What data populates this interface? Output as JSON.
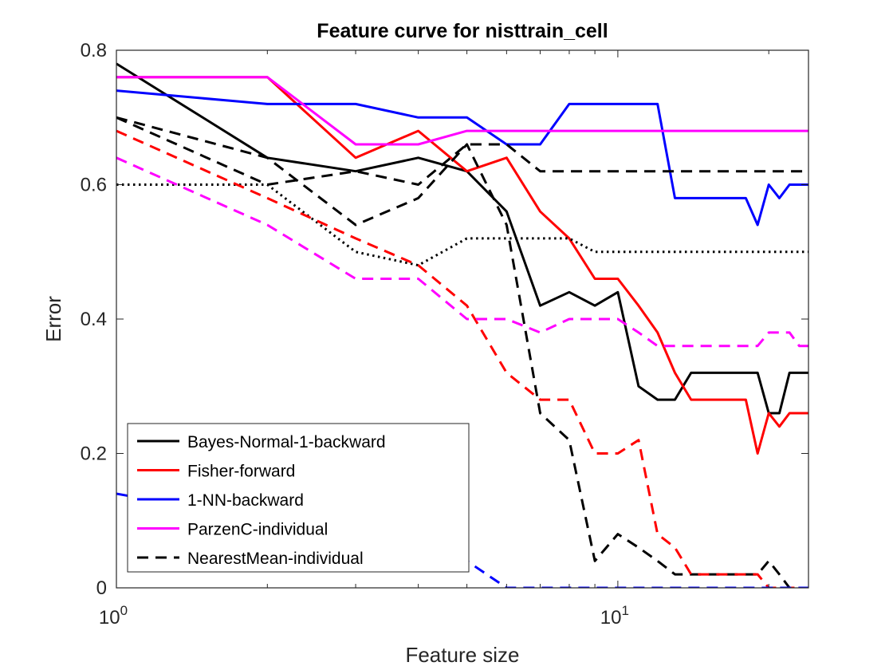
{
  "chart_data": {
    "type": "line",
    "title": "Feature curve for nisttrain_cell",
    "xlabel": "Feature size",
    "ylabel": "Error",
    "xscale": "log",
    "xlim": [
      1,
      24
    ],
    "ylim": [
      0,
      0.8
    ],
    "x_ticks": [
      {
        "value": 1,
        "base": "10",
        "exp": "0"
      },
      {
        "value": 10,
        "base": "10",
        "exp": "1"
      }
    ],
    "y_ticks": [
      {
        "value": 0,
        "label": "0"
      },
      {
        "value": 0.2,
        "label": "0.2"
      },
      {
        "value": 0.4,
        "label": "0.4"
      },
      {
        "value": 0.6,
        "label": "0.6"
      },
      {
        "value": 0.8,
        "label": "0.8"
      }
    ],
    "grid": false,
    "legend_position": "bottom-left",
    "series": [
      {
        "name": "Bayes-Normal-1-backward",
        "color": "#000000",
        "dash": "solid",
        "in_legend": true,
        "x": [
          1,
          2,
          3,
          4,
          5,
          6,
          7,
          8,
          9,
          10,
          11,
          12,
          13,
          14,
          15,
          16,
          17,
          18,
          19,
          20,
          21,
          22,
          23,
          24
        ],
        "y": [
          0.78,
          0.64,
          0.62,
          0.64,
          0.62,
          0.56,
          0.42,
          0.44,
          0.42,
          0.44,
          0.3,
          0.28,
          0.28,
          0.32,
          0.32,
          0.32,
          0.32,
          0.32,
          0.32,
          0.26,
          0.26,
          0.32,
          0.32,
          0.32
        ]
      },
      {
        "name": "Fisher-forward",
        "color": "#ff0000",
        "dash": "solid",
        "in_legend": true,
        "x": [
          1,
          2,
          3,
          4,
          5,
          6,
          7,
          8,
          9,
          10,
          11,
          12,
          13,
          14,
          15,
          16,
          17,
          18,
          19,
          20,
          21,
          22,
          23,
          24
        ],
        "y": [
          0.76,
          0.76,
          0.64,
          0.68,
          0.62,
          0.64,
          0.56,
          0.52,
          0.46,
          0.46,
          0.42,
          0.38,
          0.32,
          0.28,
          0.28,
          0.28,
          0.28,
          0.28,
          0.2,
          0.26,
          0.24,
          0.26,
          0.26,
          0.26
        ]
      },
      {
        "name": "1-NN-backward",
        "color": "#0000ff",
        "dash": "solid",
        "in_legend": true,
        "x": [
          1,
          2,
          3,
          4,
          5,
          6,
          7,
          8,
          9,
          10,
          11,
          12,
          13,
          14,
          15,
          16,
          17,
          18,
          19,
          20,
          21,
          22,
          23,
          24
        ],
        "y": [
          0.74,
          0.72,
          0.72,
          0.7,
          0.7,
          0.66,
          0.66,
          0.72,
          0.72,
          0.72,
          0.72,
          0.72,
          0.58,
          0.58,
          0.58,
          0.58,
          0.58,
          0.58,
          0.54,
          0.6,
          0.58,
          0.6,
          0.6,
          0.6
        ]
      },
      {
        "name": "ParzenC-individual",
        "color": "#ff00ff",
        "dash": "solid",
        "in_legend": true,
        "x": [
          1,
          2,
          3,
          4,
          5,
          6,
          7,
          8,
          9,
          10,
          11,
          12,
          13,
          14,
          15,
          16,
          17,
          18,
          19,
          20,
          21,
          22,
          23,
          24
        ],
        "y": [
          0.76,
          0.76,
          0.66,
          0.66,
          0.68,
          0.68,
          0.68,
          0.68,
          0.68,
          0.68,
          0.68,
          0.68,
          0.68,
          0.68,
          0.68,
          0.68,
          0.68,
          0.68,
          0.68,
          0.68,
          0.68,
          0.68,
          0.68,
          0.68
        ]
      },
      {
        "name": "NearestMean-individual",
        "color": "#000000",
        "dash": "dashed",
        "in_legend": true,
        "x": [
          1,
          2,
          3,
          4,
          5,
          6,
          7,
          8,
          9,
          10,
          11,
          12,
          13,
          14,
          15,
          16,
          17,
          18,
          19,
          20,
          21,
          22,
          23,
          24
        ],
        "y": [
          0.7,
          0.6,
          0.62,
          0.6,
          0.66,
          0.66,
          0.62,
          0.62,
          0.62,
          0.62,
          0.62,
          0.62,
          0.62,
          0.62,
          0.62,
          0.62,
          0.62,
          0.62,
          0.62,
          0.62,
          0.62,
          0.62,
          0.62,
          0.62
        ]
      },
      {
        "name": "",
        "color": "#000000",
        "dash": "dotted",
        "in_legend": false,
        "x": [
          1,
          2,
          3,
          4,
          5,
          6,
          7,
          8,
          9,
          10,
          11,
          12,
          13,
          14,
          15,
          16,
          17,
          18,
          19,
          20,
          21,
          22,
          23,
          24
        ],
        "y": [
          0.6,
          0.6,
          0.5,
          0.48,
          0.52,
          0.52,
          0.52,
          0.52,
          0.5,
          0.5,
          0.5,
          0.5,
          0.5,
          0.5,
          0.5,
          0.5,
          0.5,
          0.5,
          0.5,
          0.5,
          0.5,
          0.5,
          0.5,
          0.5
        ]
      },
      {
        "name": "",
        "color": "#000000",
        "dash": "dashed",
        "in_legend": false,
        "x": [
          1,
          2,
          3,
          4,
          5,
          6,
          7,
          8,
          9,
          10,
          11,
          12,
          13,
          14,
          15,
          16,
          17,
          18,
          19,
          20,
          21,
          22,
          23,
          24
        ],
        "y": [
          0.7,
          0.64,
          0.54,
          0.58,
          0.66,
          0.54,
          0.26,
          0.22,
          0.04,
          0.08,
          0.06,
          0.04,
          0.02,
          0.02,
          0.02,
          0.02,
          0.02,
          0.02,
          0.02,
          0.04,
          0.02,
          0.0,
          0.0,
          0.0
        ]
      },
      {
        "name": "",
        "color": "#ff0000",
        "dash": "dashed",
        "in_legend": false,
        "x": [
          1,
          2,
          3,
          4,
          5,
          6,
          7,
          8,
          9,
          10,
          11,
          12,
          13,
          14,
          15,
          16,
          17,
          18,
          19,
          20,
          21,
          22,
          23,
          24
        ],
        "y": [
          0.68,
          0.58,
          0.52,
          0.48,
          0.42,
          0.32,
          0.28,
          0.28,
          0.2,
          0.2,
          0.22,
          0.08,
          0.06,
          0.02,
          0.02,
          0.02,
          0.02,
          0.02,
          0.02,
          0.0,
          0.0,
          0.0,
          0.0,
          0.0
        ]
      },
      {
        "name": "",
        "color": "#ff00ff",
        "dash": "dashed",
        "in_legend": false,
        "x": [
          1,
          2,
          3,
          4,
          5,
          6,
          7,
          8,
          9,
          10,
          11,
          12,
          13,
          14,
          15,
          16,
          17,
          18,
          19,
          20,
          21,
          22,
          23,
          24
        ],
        "y": [
          0.64,
          0.54,
          0.46,
          0.46,
          0.4,
          0.4,
          0.38,
          0.4,
          0.4,
          0.4,
          0.38,
          0.36,
          0.36,
          0.36,
          0.36,
          0.36,
          0.36,
          0.36,
          0.36,
          0.38,
          0.38,
          0.38,
          0.36,
          0.36
        ]
      },
      {
        "name": "",
        "color": "#0000ff",
        "dash": "dashed",
        "in_legend": false,
        "x": [
          1,
          2,
          3,
          4,
          5,
          6,
          7,
          8,
          9,
          10,
          11,
          12,
          13,
          14,
          15,
          16,
          17,
          18,
          19,
          20,
          21,
          22,
          23,
          24
        ],
        "y": [
          0.14,
          0.1,
          0.08,
          0.06,
          0.04,
          0.0,
          0.0,
          0.0,
          0.0,
          0.0,
          0.0,
          0.0,
          0.0,
          0.0,
          0.0,
          0.0,
          0.0,
          0.0,
          0.0,
          0.0,
          0.0,
          0.0,
          0.0,
          0.0
        ]
      }
    ]
  }
}
